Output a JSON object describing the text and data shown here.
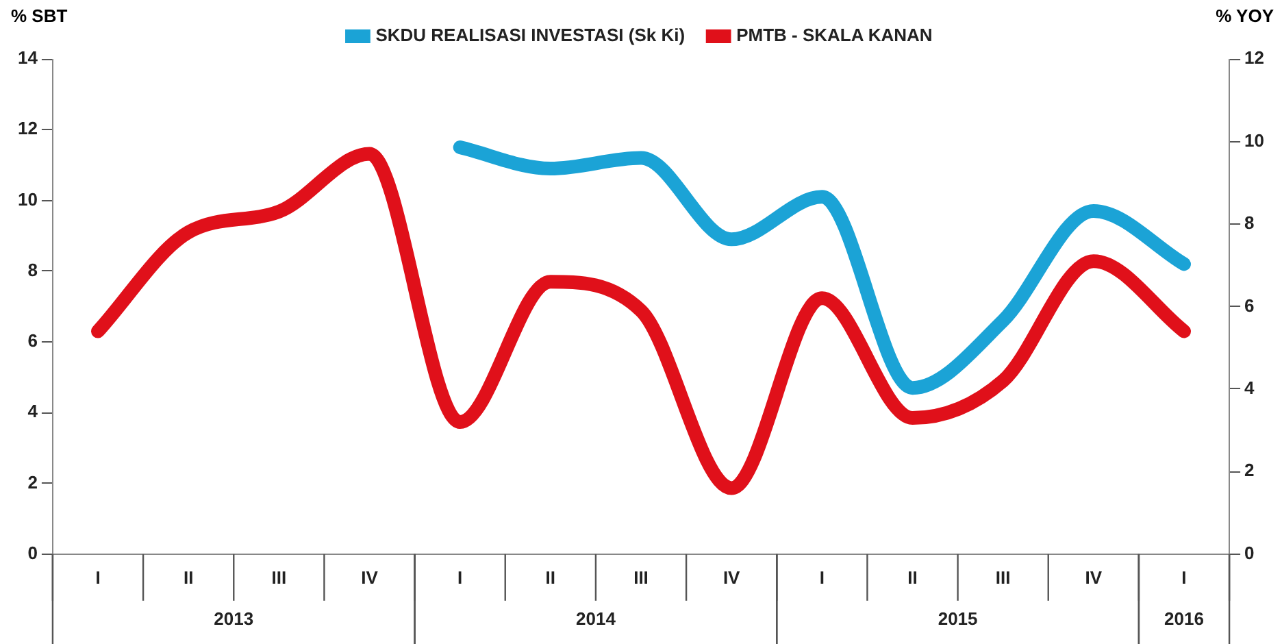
{
  "chart_data": {
    "type": "line",
    "ylabel": "% SBT",
    "y2label": "% YOY",
    "categories": [
      "I",
      "II",
      "III",
      "IV",
      "I",
      "II",
      "III",
      "IV",
      "I",
      "II",
      "III",
      "IV",
      "I"
    ],
    "series": [
      {
        "name": "SKDU REALISASI INVESTASI (Sk Ki)",
        "color": "#1ba3d6",
        "values": [
          null,
          null,
          null,
          null,
          11.5,
          10.9,
          11.2,
          8.9,
          10.1,
          4.7,
          6.6,
          9.7,
          8.2
        ]
      },
      {
        "name": "PMTB - SKALA KANAN",
        "color": "#e0101a",
        "axis": "y2",
        "values": [
          5.4,
          7.8,
          8.3,
          9.7,
          3.2,
          6.6,
          5.9,
          1.6,
          6.2,
          3.3,
          4.2,
          7.1,
          5.4
        ]
      }
    ],
    "ylim": [
      0,
      14
    ],
    "yticks": [
      0,
      2,
      4,
      6,
      8,
      10,
      12,
      14
    ],
    "y2lim": [
      0,
      12
    ],
    "y2ticks": [
      0,
      2,
      4,
      6,
      8,
      10,
      12
    ],
    "annotations": [
      "2013",
      "2014",
      "2015",
      "2016"
    ],
    "grid": false,
    "legend": "top",
    "marker": "none",
    "line_style": "solid"
  }
}
